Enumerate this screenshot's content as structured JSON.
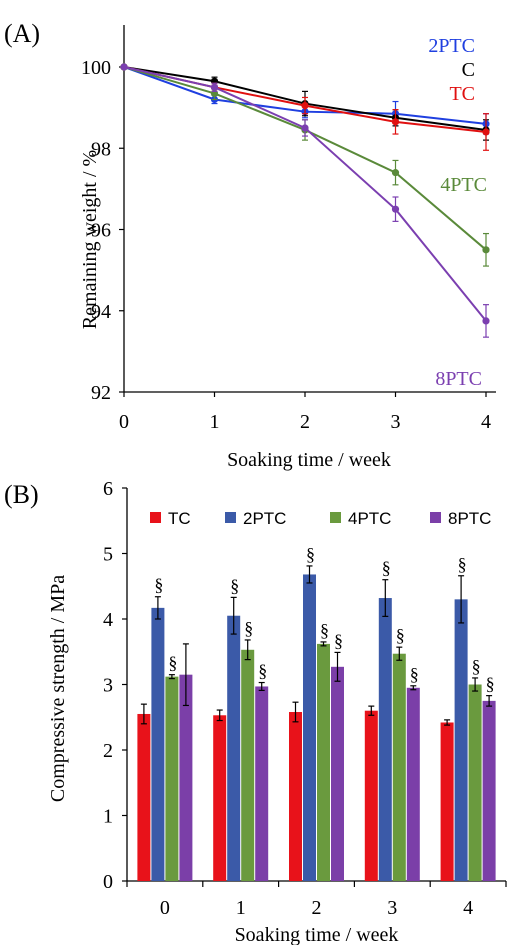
{
  "chart_data": [
    {
      "panel_label": "(A)",
      "type": "line",
      "xlabel": "Soaking time / week",
      "ylabel": "Remaining weight / %",
      "x": [
        0,
        1,
        2,
        3,
        4
      ],
      "xlim": [
        0,
        4
      ],
      "ylim": [
        92,
        100
      ],
      "yticks": [
        92,
        94,
        96,
        98,
        100
      ],
      "legend": "inline labels at right",
      "series": [
        {
          "name": "2PTC",
          "color": "#1f3fe0",
          "values": [
            100,
            99.2,
            98.9,
            98.85,
            98.6
          ],
          "errors": [
            0,
            0.1,
            0.15,
            0.3,
            0.25
          ]
        },
        {
          "name": "C",
          "color": "#000000",
          "values": [
            100,
            99.65,
            99.1,
            98.75,
            98.45
          ],
          "errors": [
            0,
            0.1,
            0.3,
            0.2,
            0.25
          ]
        },
        {
          "name": "TC",
          "color": "#e01010",
          "values": [
            100,
            99.5,
            99.05,
            98.65,
            98.4
          ],
          "errors": [
            0,
            0.1,
            0.2,
            0.3,
            0.45
          ]
        },
        {
          "name": "4PTC",
          "color": "#5a8a3a",
          "values": [
            100,
            99.35,
            98.45,
            97.4,
            95.5
          ],
          "errors": [
            0,
            0.15,
            0.25,
            0.3,
            0.4
          ]
        },
        {
          "name": "8PTC",
          "color": "#7b3fb0",
          "values": [
            100,
            99.5,
            98.5,
            96.5,
            93.75
          ],
          "errors": [
            0,
            0.1,
            0.2,
            0.3,
            0.4
          ]
        }
      ]
    },
    {
      "panel_label": "(B)",
      "type": "bar",
      "xlabel": "Soaking time / week",
      "ylabel": "Compressive strength / MPa",
      "categories": [
        "0",
        "1",
        "2",
        "3",
        "4"
      ],
      "ylim": [
        0,
        6
      ],
      "yticks": [
        0,
        1,
        2,
        3,
        4,
        5,
        6
      ],
      "legend": "top",
      "marker": "§",
      "series": [
        {
          "name": "TC",
          "color": "#e8121a",
          "values": [
            2.55,
            2.53,
            2.58,
            2.6,
            2.42
          ],
          "errors": [
            0.15,
            0.08,
            0.15,
            0.07,
            0.04
          ],
          "marked": [
            false,
            false,
            false,
            false,
            false
          ]
        },
        {
          "name": "2PTC",
          "color": "#3b5aa8",
          "values": [
            4.17,
            4.05,
            4.68,
            4.32,
            4.3
          ],
          "errors": [
            0.17,
            0.28,
            0.13,
            0.28,
            0.36
          ],
          "marked": [
            true,
            true,
            true,
            true,
            true
          ]
        },
        {
          "name": "4PTC",
          "color": "#6a9a3e",
          "values": [
            3.12,
            3.53,
            3.62,
            3.47,
            3.0
          ],
          "errors": [
            0.03,
            0.15,
            0.03,
            0.1,
            0.1
          ],
          "marked": [
            true,
            true,
            true,
            true,
            true
          ]
        },
        {
          "name": "8PTC",
          "color": "#7b3fa8",
          "values": [
            3.15,
            2.97,
            3.27,
            2.95,
            2.75
          ],
          "errors": [
            0.47,
            0.06,
            0.22,
            0.03,
            0.08
          ],
          "marked": [
            false,
            true,
            true,
            true,
            true
          ]
        }
      ]
    }
  ]
}
